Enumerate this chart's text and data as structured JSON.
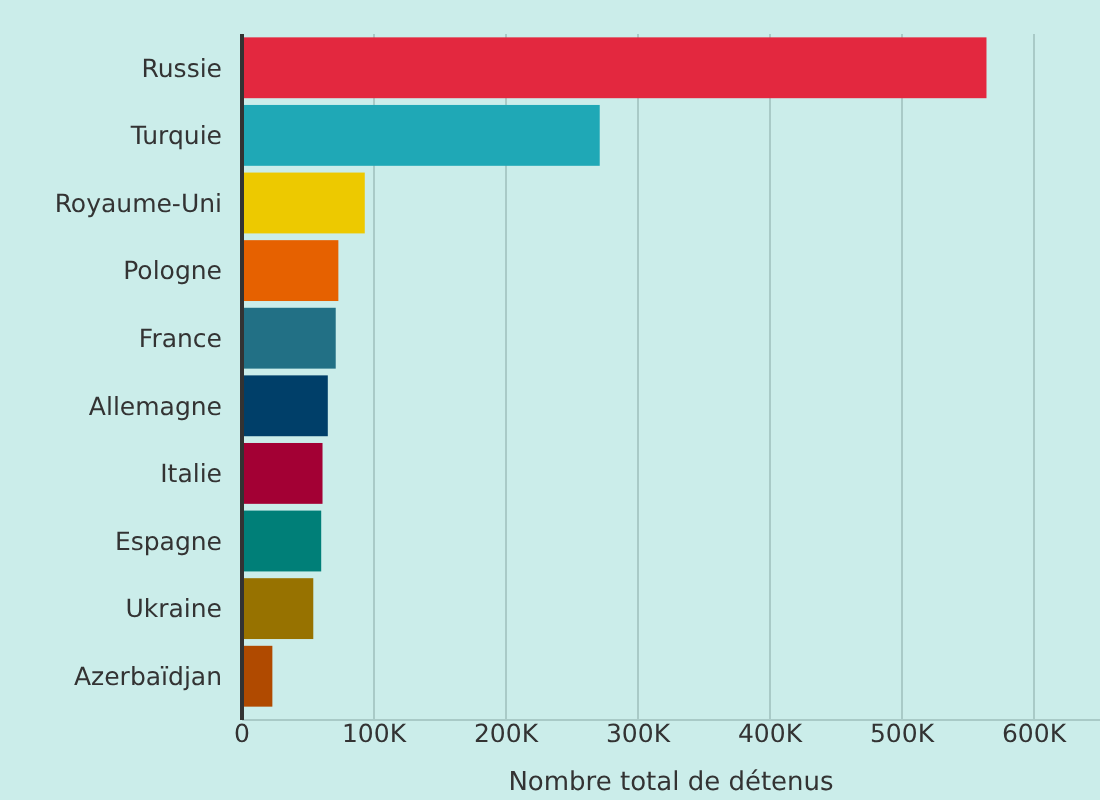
{
  "chart_data": {
    "type": "bar",
    "orientation": "horizontal",
    "xlabel": "Nombre total de détenus",
    "categories": [
      "Russie",
      "Turquie",
      "Royaume-Uni",
      "Pologne",
      "France",
      "Allemagne",
      "Italie",
      "Espagne",
      "Ukraine",
      "Azerbaïdjan"
    ],
    "values": [
      564000,
      271000,
      93000,
      73000,
      71000,
      65000,
      61000,
      60000,
      54000,
      23000
    ],
    "colors": [
      "#e3283f",
      "#1fa8b6",
      "#edc900",
      "#e66100",
      "#227085",
      "#003f69",
      "#a30034",
      "#007f78",
      "#977200",
      "#b04a00"
    ],
    "xlim": [
      0,
      650000
    ],
    "xticks": [
      0,
      {
        "value": 100000,
        "label": "100K"
      },
      {
        "value": 200000,
        "label": "200K"
      },
      {
        "value": 300000,
        "label": "300K"
      },
      {
        "value": 400000,
        "label": "400K"
      },
      {
        "value": 500000,
        "label": "500K"
      },
      {
        "value": 600000,
        "label": "600K"
      }
    ],
    "grid": "x"
  }
}
